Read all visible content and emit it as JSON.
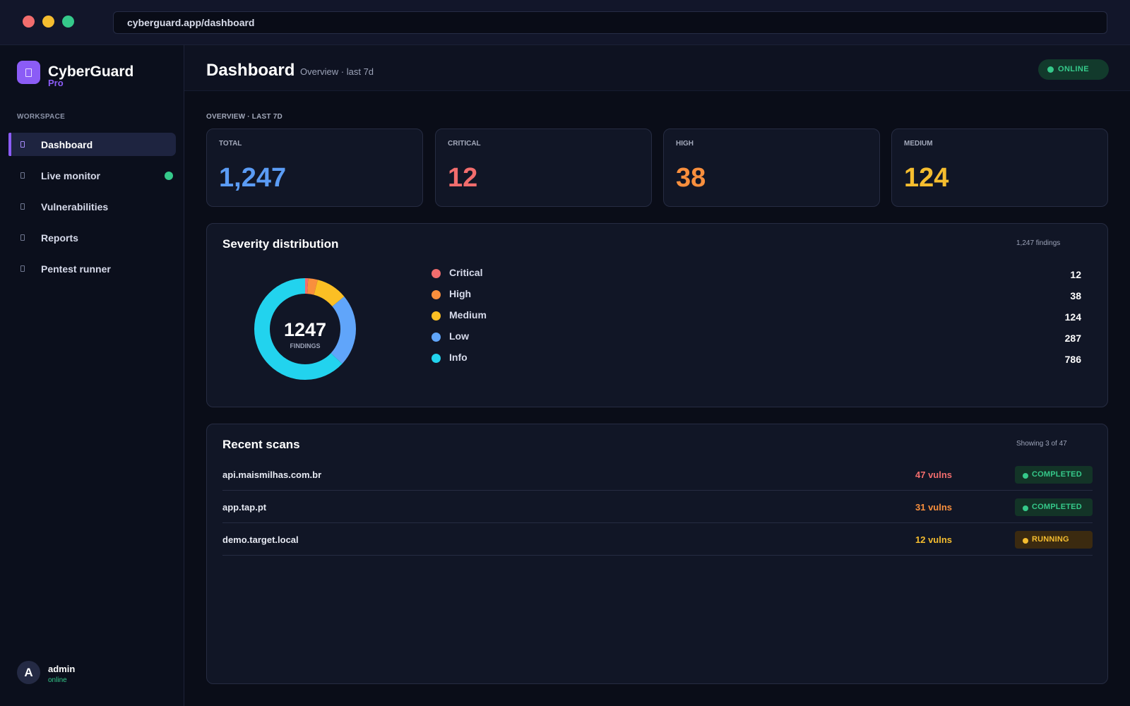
{
  "browser": {
    "url": "cyberguard.app/dashboard"
  },
  "brand": {
    "name": "CyberGuard",
    "sub": "Pro",
    "icon": "shield-icon",
    "accent": "#8b5cf6"
  },
  "sidebar": {
    "section_label": "WORKSPACE",
    "items": [
      {
        "label": "Dashboard",
        "icon": "dashboard-icon",
        "active": true
      },
      {
        "label": "Live monitor",
        "icon": "monitor-icon",
        "live": true
      },
      {
        "label": "Vulnerabilities",
        "icon": "bug-icon"
      },
      {
        "label": "Reports",
        "icon": "report-icon"
      },
      {
        "label": "Pentest runner",
        "icon": "terminal-icon"
      }
    ]
  },
  "user": {
    "initial": "A",
    "name": "admin",
    "status": "online"
  },
  "header": {
    "title": "Dashboard",
    "subtitle": "Overview · last 7d",
    "status_label": "ONLINE"
  },
  "overview": {
    "section_label": "OVERVIEW · LAST 7D",
    "stats": [
      {
        "label": "TOTAL",
        "value": "1,247",
        "color": "#5b9cf5"
      },
      {
        "label": "CRITICAL",
        "value": "12",
        "color": "#f26d6d"
      },
      {
        "label": "HIGH",
        "value": "38",
        "color": "#f98f3d"
      },
      {
        "label": "MEDIUM",
        "value": "124",
        "color": "#f5bd2f"
      }
    ]
  },
  "severity": {
    "title": "Severity distribution",
    "meta": "1,247 findings",
    "center_value": "1247",
    "center_label": "FINDINGS",
    "items": [
      {
        "label": "Critical",
        "value": 12,
        "color": "#f26d6d"
      },
      {
        "label": "High",
        "value": 38,
        "color": "#f98f3d"
      },
      {
        "label": "Medium",
        "value": 124,
        "color": "#fbbf24"
      },
      {
        "label": "Low",
        "value": 287,
        "color": "#60a5fa"
      },
      {
        "label": "Info",
        "value": 786,
        "color": "#22d3ee"
      }
    ]
  },
  "scans": {
    "title": "Recent scans",
    "meta": "Showing 3 of 47",
    "rows": [
      {
        "host": "api.maismilhas.com.br",
        "vulns": "47 vulns",
        "vulns_color": "#f26d6d",
        "status": "COMPLETED",
        "state": "completed"
      },
      {
        "host": "app.tap.pt",
        "vulns": "31 vulns",
        "vulns_color": "#f98f3d",
        "status": "COMPLETED",
        "state": "completed"
      },
      {
        "host": "demo.target.local",
        "vulns": "12 vulns",
        "vulns_color": "#f5bd2f",
        "status": "RUNNING",
        "state": "running"
      }
    ]
  }
}
